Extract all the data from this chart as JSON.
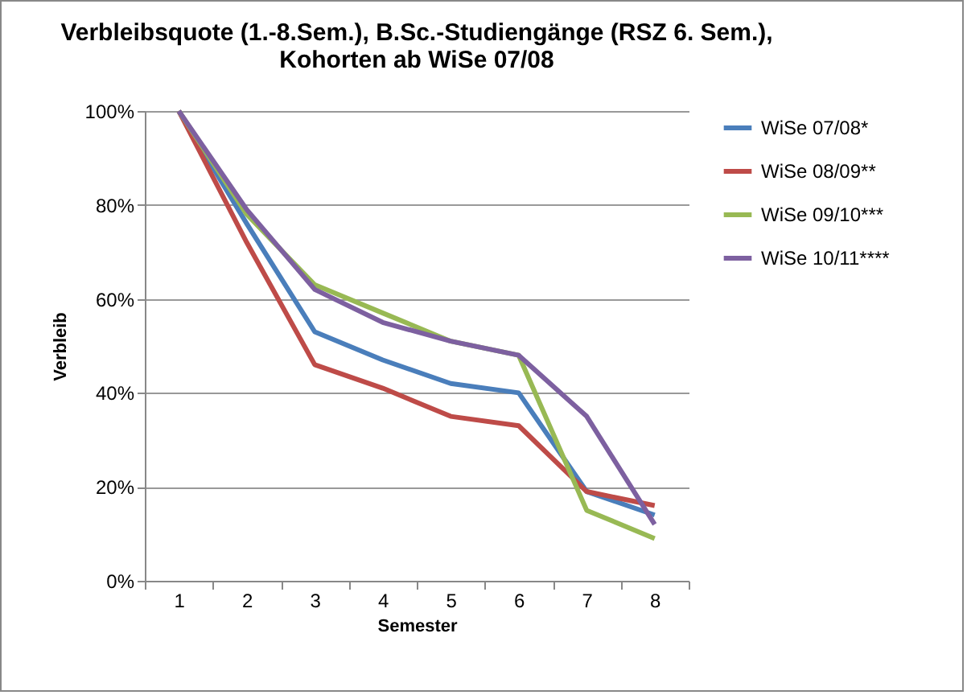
{
  "chart_data": {
    "type": "line",
    "title": "Verbleibsquote (1.-8.Sem.), B.Sc.-Studiengänge (RSZ 6. Sem.), Kohorten ab WiSe 07/08",
    "xlabel": "Semester",
    "ylabel": "Verbleib",
    "categories": [
      "1",
      "2",
      "3",
      "4",
      "5",
      "6",
      "7",
      "8"
    ],
    "series": [
      {
        "name": "WiSe 07/08*",
        "color": "#4a7ebb",
        "values": [
          100,
          76,
          53,
          47,
          42,
          40,
          19,
          14
        ]
      },
      {
        "name": "WiSe 08/09**",
        "color": "#be4b48",
        "values": [
          100,
          72,
          46,
          41,
          35,
          33,
          19,
          16
        ]
      },
      {
        "name": "WiSe 09/10***",
        "color": "#98b954",
        "values": [
          100,
          78,
          63,
          57,
          51,
          48,
          15,
          9
        ]
      },
      {
        "name": "WiSe 10/11****",
        "color": "#7d60a0",
        "values": [
          100,
          79,
          62,
          55,
          51,
          48,
          35,
          12
        ]
      }
    ],
    "ylim": [
      0,
      100
    ],
    "yticks": [
      {
        "value": 0,
        "label": "0%"
      },
      {
        "value": 20,
        "label": "20%"
      },
      {
        "value": 40,
        "label": "40%"
      },
      {
        "value": 60,
        "label": "60%"
      },
      {
        "value": 80,
        "label": "80%"
      },
      {
        "value": 100,
        "label": "100%"
      }
    ],
    "grid": "y",
    "legend": "right",
    "marker": "none",
    "line_style": "solid"
  }
}
